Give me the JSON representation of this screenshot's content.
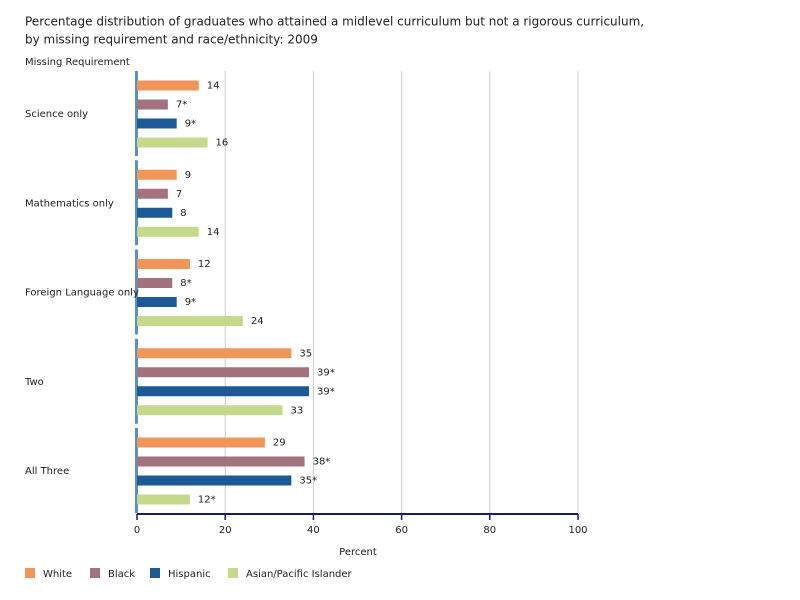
{
  "chart_data": {
    "type": "bar",
    "orientation": "horizontal",
    "title": [
      "Percentage distribution of graduates who attained a midlevel curriculum but not a rigorous curriculum,",
      "by missing requirement and race/ethnicity: 2009"
    ],
    "y_axis_label": "Missing Requirement",
    "x_axis_label": "Percent",
    "categories": [
      "Science only",
      "Mathematics only",
      "Foreign Language only",
      "Two",
      "All Three"
    ],
    "series": [
      {
        "name": "White",
        "color": "#f0965a",
        "values": [
          14,
          9,
          12,
          35,
          29
        ]
      },
      {
        "name": "Black",
        "color": "#a2727f",
        "values": [
          7,
          7,
          8,
          39,
          38
        ],
        "value_labels": [
          "7*",
          "7",
          "8*",
          "39*",
          "38*"
        ]
      },
      {
        "name": "Hispanic",
        "color": "#1b5a95",
        "values": [
          9,
          8,
          9,
          39,
          35
        ],
        "value_labels": [
          "9*",
          "8",
          "9*",
          "39*",
          "35*"
        ]
      },
      {
        "name": "Asian/Pacific Islander",
        "color": "#c5d98b",
        "values": [
          16,
          14,
          24,
          33,
          12
        ],
        "value_labels": [
          "16",
          "14",
          "24",
          "33",
          "12*"
        ]
      }
    ],
    "xlim": [
      0,
      100
    ],
    "xticks": [
      0,
      20,
      40,
      60,
      80,
      100
    ],
    "grid": true,
    "legend": "bottom"
  }
}
